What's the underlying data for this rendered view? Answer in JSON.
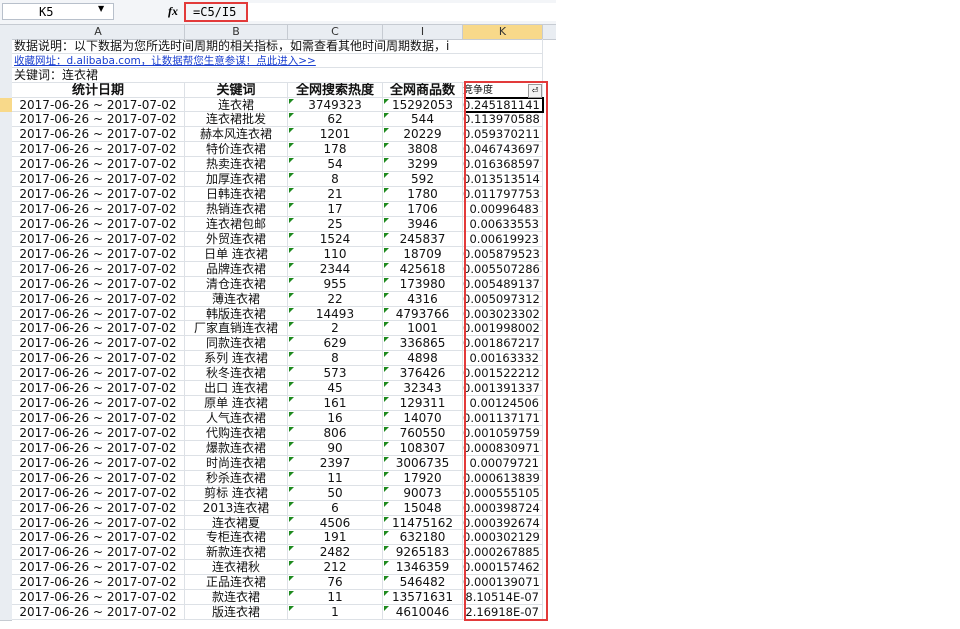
{
  "formula_bar": {
    "name_box": "K5",
    "fx": "fx",
    "formula": "=C5/I5"
  },
  "columns": [
    "A",
    "B",
    "C",
    "I",
    "K"
  ],
  "selected_column": "K",
  "info": {
    "description": "数据说明：以下数据为您所选时间周期的相关指标，如需查看其他时间周期数据，i",
    "link": "收藏网址：d.alibaba.com，让数据帮您生意参谋！点此进入>>",
    "keyword": "关键词：连衣裙"
  },
  "headers": [
    "统计日期",
    "关键词",
    "全网搜索热度",
    "全网商品数",
    "竞争度"
  ],
  "date_range": "2017-06-26 ~ 2017-07-02",
  "rows": [
    [
      "连衣裙",
      "3749323",
      "15292053",
      "0.245181141"
    ],
    [
      "连衣裙批发",
      "62",
      "544",
      "0.113970588"
    ],
    [
      "赫本风连衣裙",
      "1201",
      "20229",
      "0.059370211"
    ],
    [
      "特价连衣裙",
      "178",
      "3808",
      "0.046743697"
    ],
    [
      "热卖连衣裙",
      "54",
      "3299",
      "0.016368597"
    ],
    [
      "加厚连衣裙",
      "8",
      "592",
      "0.013513514"
    ],
    [
      "日韩连衣裙",
      "21",
      "1780",
      "0.011797753"
    ],
    [
      "热销连衣裙",
      "17",
      "1706",
      "0.00996483"
    ],
    [
      "连衣裙包邮",
      "25",
      "3946",
      "0.00633553"
    ],
    [
      "外贸连衣裙",
      "1524",
      "245837",
      "0.00619923"
    ],
    [
      "日单 连衣裙",
      "110",
      "18709",
      "0.005879523"
    ],
    [
      "品牌连衣裙",
      "2344",
      "425618",
      "0.005507286"
    ],
    [
      "清仓连衣裙",
      "955",
      "173980",
      "0.005489137"
    ],
    [
      "薄连衣裙",
      "22",
      "4316",
      "0.005097312"
    ],
    [
      "韩版连衣裙",
      "14493",
      "4793766",
      "0.003023302"
    ],
    [
      "厂家直销连衣裙",
      "2",
      "1001",
      "0.001998002"
    ],
    [
      "同款连衣裙",
      "629",
      "336865",
      "0.001867217"
    ],
    [
      "系列 连衣裙",
      "8",
      "4898",
      "0.00163332"
    ],
    [
      "秋冬连衣裙",
      "573",
      "376426",
      "0.001522212"
    ],
    [
      "出口 连衣裙",
      "45",
      "32343",
      "0.001391337"
    ],
    [
      "原单 连衣裙",
      "161",
      "129311",
      "0.00124506"
    ],
    [
      "人气连衣裙",
      "16",
      "14070",
      "0.001137171"
    ],
    [
      "代购连衣裙",
      "806",
      "760550",
      "0.001059759"
    ],
    [
      "爆款连衣裙",
      "90",
      "108307",
      "0.000830971"
    ],
    [
      "时尚连衣裙",
      "2397",
      "3006735",
      "0.00079721"
    ],
    [
      "秒杀连衣裙",
      "11",
      "17920",
      "0.000613839"
    ],
    [
      "剪标 连衣裙",
      "50",
      "90073",
      "0.000555105"
    ],
    [
      "2013连衣裙",
      "6",
      "15048",
      "0.000398724"
    ],
    [
      "连衣裙夏",
      "4506",
      "11475162",
      "0.000392674"
    ],
    [
      "专柜连衣裙",
      "191",
      "632180",
      "0.000302129"
    ],
    [
      "新款连衣裙",
      "2482",
      "9265183",
      "0.000267885"
    ],
    [
      "连衣裙秋",
      "212",
      "1346359",
      "0.000157462"
    ],
    [
      "正品连衣裙",
      "76",
      "546482",
      "0.000139071"
    ],
    [
      "款连衣裙",
      "11",
      "13571631",
      "8.10514E-07"
    ],
    [
      "版连衣裙",
      "1",
      "4610046",
      "2.16918E-07"
    ]
  ],
  "colors": {
    "highlight": "#e23a3a",
    "selected_header": "#f8d98a",
    "error_triangle": "#1e8a1e"
  }
}
